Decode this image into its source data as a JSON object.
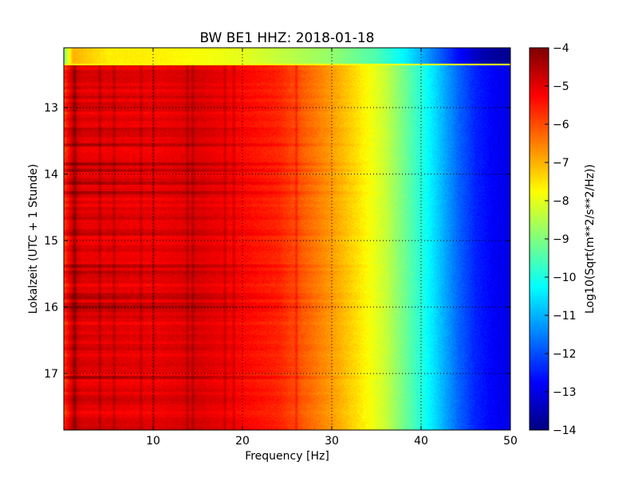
{
  "chart_data": {
    "type": "heatmap",
    "title": "BW BE1 HHZ: 2018-01-18",
    "xlabel": "Frequency [Hz]",
    "ylabel": "Lokalzeit (UTC + 1 Stunde)",
    "colorbar_label": "Log10(Sqrt(m**2/s**2/Hz))",
    "colormap": "jet",
    "xlim": [
      0,
      50
    ],
    "ylim_hours": [
      12.1,
      17.85
    ],
    "y_inverted": true,
    "x_ticks": [
      10,
      20,
      30,
      40,
      50
    ],
    "x_tick_labels": [
      "10",
      "20",
      "30",
      "40",
      "50"
    ],
    "y_ticks": [
      13,
      14,
      15,
      16,
      17
    ],
    "y_tick_labels": [
      "13",
      "14",
      "15",
      "16",
      "17"
    ],
    "colorbar_range": [
      -14,
      -4
    ],
    "colorbar_ticks": [
      -4,
      -5,
      -6,
      -7,
      -8,
      -9,
      -10,
      -11,
      -12,
      -13,
      -14
    ],
    "colorbar_tick_labels": [
      "−4",
      "−5",
      "−6",
      "−7",
      "−8",
      "−9",
      "−10",
      "−11",
      "−12",
      "−13",
      "−14"
    ],
    "grid": true,
    "spectrum_profile": {
      "frequency_hz": [
        0,
        1,
        2,
        5,
        10,
        15,
        20,
        24,
        27,
        30,
        33,
        36,
        38,
        40,
        42,
        44,
        46,
        48,
        50
      ],
      "log10_psd": [
        -5.8,
        -4.6,
        -5.0,
        -5.0,
        -5.1,
        -4.9,
        -5.3,
        -5.6,
        -6.2,
        -6.8,
        -7.5,
        -8.3,
        -9.1,
        -9.9,
        -10.8,
        -11.7,
        -12.4,
        -12.8,
        -13.0
      ]
    },
    "first_row_profile": {
      "frequency_hz": [
        0,
        1,
        5,
        10,
        15,
        20,
        25,
        30,
        35,
        38,
        40,
        42,
        44,
        46,
        48,
        50
      ],
      "log10_psd": [
        -8.9,
        -7.0,
        -7.6,
        -7.6,
        -7.8,
        -8.0,
        -8.4,
        -8.8,
        -9.5,
        -10.3,
        -11.0,
        -11.8,
        -12.6,
        -13.3,
        -13.7,
        -13.8
      ]
    },
    "line_frequencies_hz": [
      1.2,
      4,
      5.6,
      8.6,
      10,
      13.8,
      14.4,
      18,
      19,
      26
    ]
  }
}
